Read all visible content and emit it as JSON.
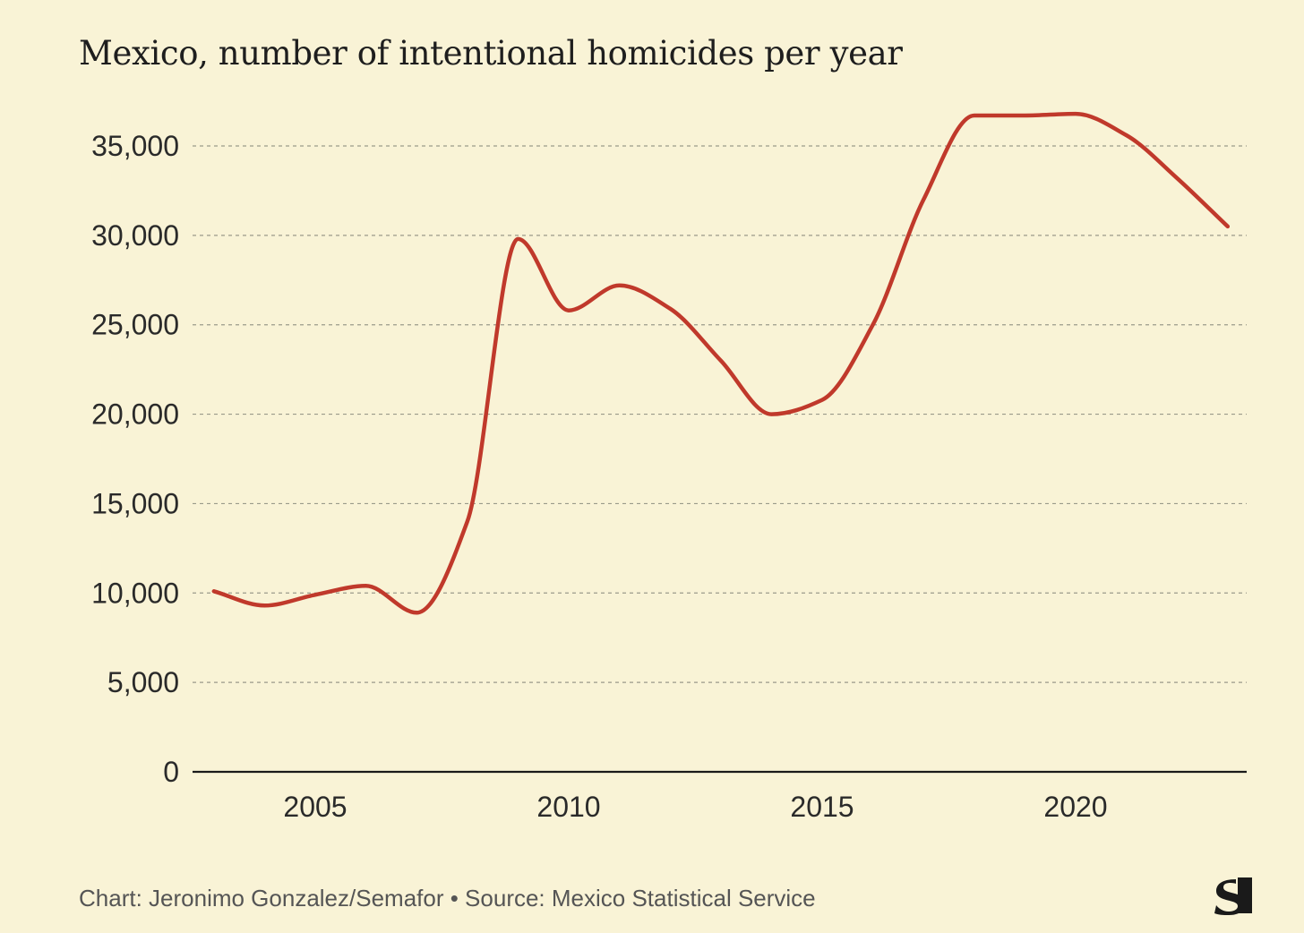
{
  "chart_data": {
    "type": "line",
    "title": "Mexico, number of intentional homicides per year",
    "xlabel": "",
    "ylabel": "",
    "x": [
      2003,
      2004,
      2005,
      2006,
      2007,
      2008,
      2009,
      2010,
      2011,
      2012,
      2013,
      2014,
      2015,
      2016,
      2017,
      2018,
      2019,
      2020,
      2021,
      2022,
      2023
    ],
    "series": [
      {
        "values": [
          10100,
          9300,
          9900,
          10400,
          8900,
          14000,
          29800,
          25800,
          27200,
          25900,
          23000,
          20000,
          20800,
          25000,
          32000,
          36700,
          36700,
          36800,
          35600,
          33200,
          30500
        ]
      }
    ],
    "xticks": [
      "2005",
      "2010",
      "2015",
      "2020"
    ],
    "xtick_values": [
      2005,
      2010,
      2015,
      2020
    ],
    "yticks": [
      "0",
      "5,000",
      "10,000",
      "15,000",
      "20,000",
      "25,000",
      "30,000",
      "35,000"
    ],
    "ytick_values": [
      0,
      5000,
      10000,
      15000,
      20000,
      25000,
      30000,
      35000
    ],
    "xlim": [
      2000.6,
      2023.4
    ],
    "ylim": [
      0,
      35000
    ],
    "grid": "horizontal dashed",
    "line_color": "#c0392b",
    "gridline_color": "#9a9a8a",
    "axis_color": "#1a1a1a",
    "background_color": "#f9f3d6"
  },
  "footer": {
    "credit": "Chart: Jeronimo Gonzalez/Semafor • Source: Mexico Statistical Service"
  },
  "logo": {
    "icon": "semafor-s-logo-icon"
  }
}
